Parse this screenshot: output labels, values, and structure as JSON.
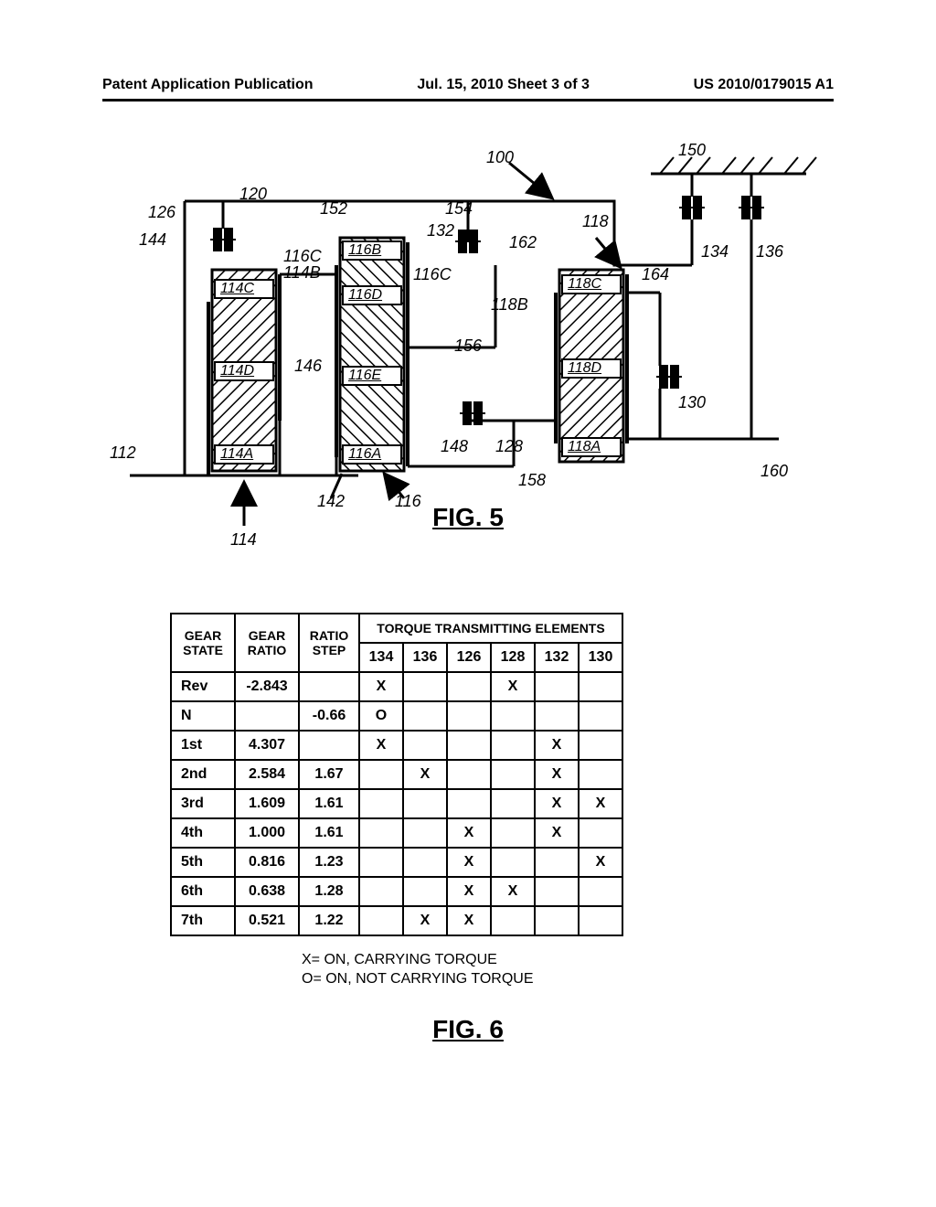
{
  "header": {
    "left": "Patent Application Publication",
    "center": "Jul. 15, 2010  Sheet 3 of 3",
    "right": "US 2010/0179015 A1"
  },
  "fig5": {
    "caption": "FIG. 5",
    "labels": {
      "n100": "100",
      "n150": "150",
      "n126": "126",
      "n120": "120",
      "n152": "152",
      "n154": "154",
      "n118": "118",
      "n144": "144",
      "n132": "132",
      "n162": "162",
      "n116C_a": "116C",
      "n116C_b": "116C",
      "n114": "114",
      "n114_arrow": "114",
      "n114A": "114A",
      "n114B": "114B",
      "n114C": "114C",
      "n114D": "114D",
      "n116": "116",
      "n116A": "116A",
      "n116B": "116B",
      "n116D": "116D",
      "n116E": "116E",
      "n118A": "118A",
      "n118B": "118B",
      "n118C": "118C",
      "n118D": "118D",
      "n142": "142",
      "n146": "146",
      "n148": "148",
      "n128": "128",
      "n156": "156",
      "n158": "158",
      "n160": "160",
      "n164": "164",
      "n134": "134",
      "n136": "136",
      "n130": "130",
      "n112": "112"
    }
  },
  "fig6": {
    "caption": "FIG. 6",
    "header": {
      "gear_state": "GEAR STATE",
      "gear_ratio": "GEAR RATIO",
      "ratio_step": "RATIO STEP",
      "torque": "TORQUE TRANSMITTING ELEMENTS",
      "cols": [
        "134",
        "136",
        "126",
        "128",
        "132",
        "130"
      ]
    },
    "rows": [
      {
        "state": "Rev",
        "ratio": "-2.843",
        "step": "",
        "t": [
          "X",
          "",
          "",
          "X",
          "",
          ""
        ]
      },
      {
        "state": "N",
        "ratio": "",
        "step": "-0.66",
        "t": [
          "O",
          "",
          "",
          "",
          "",
          ""
        ]
      },
      {
        "state": "1st",
        "ratio": "4.307",
        "step": "",
        "t": [
          "X",
          "",
          "",
          "",
          "X",
          ""
        ]
      },
      {
        "state": "2nd",
        "ratio": "2.584",
        "step": "1.67",
        "t": [
          "",
          "X",
          "",
          "",
          "X",
          ""
        ]
      },
      {
        "state": "3rd",
        "ratio": "1.609",
        "step": "1.61",
        "t": [
          "",
          "",
          "",
          "",
          "X",
          "X"
        ]
      },
      {
        "state": "4th",
        "ratio": "1.000",
        "step": "1.61",
        "t": [
          "",
          "",
          "X",
          "",
          "X",
          ""
        ]
      },
      {
        "state": "5th",
        "ratio": "0.816",
        "step": "1.23",
        "t": [
          "",
          "",
          "X",
          "",
          "",
          "X"
        ]
      },
      {
        "state": "6th",
        "ratio": "0.638",
        "step": "1.28",
        "t": [
          "",
          "",
          "X",
          "X",
          "",
          ""
        ]
      },
      {
        "state": "7th",
        "ratio": "0.521",
        "step": "1.22",
        "t": [
          "",
          "X",
          "X",
          "",
          "",
          ""
        ]
      }
    ],
    "legendX": "X= ON, CARRYING TORQUE",
    "legendO": "O= ON, NOT CARRYING TORQUE"
  },
  "style": {
    "colW": {
      "state": 66,
      "ratio": 66,
      "step": 62,
      "torque": 44
    }
  }
}
